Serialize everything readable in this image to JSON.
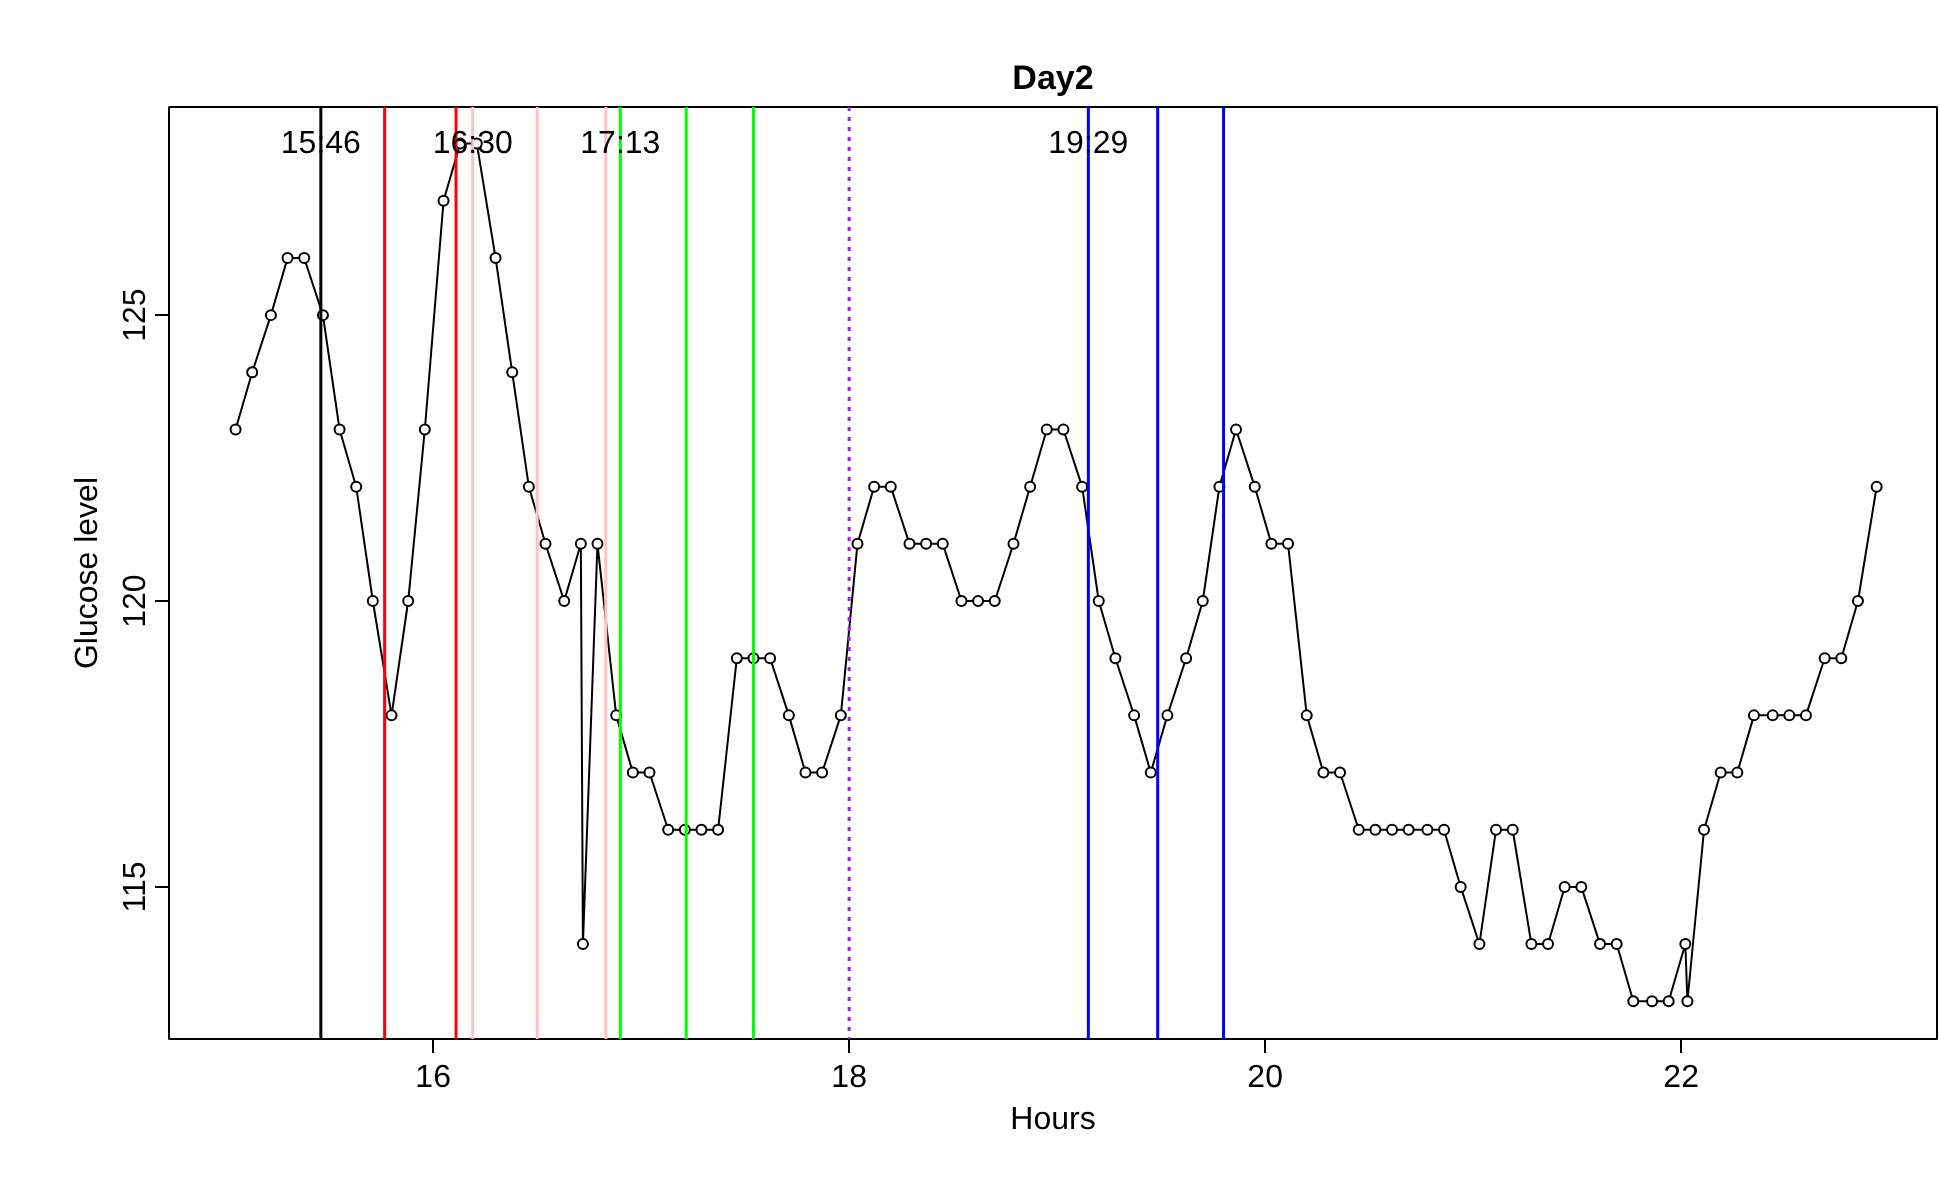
{
  "chart_data": {
    "type": "line",
    "title": "Day2",
    "xlabel": "Hours",
    "ylabel": "Glucose level",
    "xlim": [
      14.73,
      23.23
    ],
    "ylim": [
      112.34,
      128.64
    ],
    "xticks": [
      16,
      18,
      20,
      22
    ],
    "yticks": [
      115,
      120,
      125
    ],
    "grid": false,
    "annotations": [
      {
        "text": "15:46",
        "x": 15.46,
        "y": 128
      },
      {
        "text": "16:30",
        "x": 16.19,
        "y": 128
      },
      {
        "text": "17:13",
        "x": 16.9,
        "y": 128
      },
      {
        "text": "19:29",
        "x": 19.15,
        "y": 128
      }
    ],
    "marker": "circle",
    "line_style": "solid",
    "series": [
      {
        "color": "#000000",
        "x": [
          15.05,
          15.13,
          15.22,
          15.3,
          15.38,
          15.47,
          15.55,
          15.63,
          15.71,
          15.8,
          15.88,
          15.96,
          16.05,
          16.13,
          16.21,
          16.3,
          16.38,
          16.46,
          16.54,
          16.63,
          16.71,
          16.72,
          16.79,
          16.88,
          16.96,
          17.04,
          17.13,
          17.21,
          17.29,
          17.37,
          17.46,
          17.54,
          17.62,
          17.71,
          17.79,
          17.87,
          17.96,
          18.04,
          18.12,
          18.2,
          18.29,
          18.37,
          18.45,
          18.54,
          18.62,
          18.7,
          18.79,
          18.87,
          18.95,
          19.03,
          19.12,
          19.2,
          19.28,
          19.37,
          19.45,
          19.53,
          19.62,
          19.7,
          19.78,
          19.86,
          19.95,
          20.03,
          20.11,
          20.2,
          20.28,
          20.36,
          20.45,
          20.53,
          20.61,
          20.69,
          20.78,
          20.86,
          20.94,
          21.03,
          21.11,
          21.19,
          21.28,
          21.36,
          21.44,
          21.52,
          21.61,
          21.69,
          21.77,
          21.86,
          21.94,
          22.02,
          22.03,
          22.11,
          22.19,
          22.27,
          22.35,
          22.44,
          22.52,
          22.6,
          22.69,
          22.77,
          22.85,
          22.94
        ],
        "values": [
          123,
          124,
          125,
          126,
          126,
          125,
          123,
          122,
          120,
          118,
          120,
          123,
          127,
          128,
          128,
          126,
          124,
          122,
          121,
          120,
          121,
          114,
          121,
          118,
          117,
          117,
          116,
          116,
          116,
          116,
          119,
          119,
          119,
          118,
          117,
          117,
          118,
          121,
          122,
          122,
          121,
          121,
          121,
          120,
          120,
          120,
          121,
          122,
          123,
          123,
          122,
          120,
          119,
          118,
          117,
          118,
          119,
          120,
          122,
          123,
          122,
          121,
          121,
          118,
          117,
          117,
          116,
          116,
          116,
          116,
          116,
          116,
          115,
          114,
          116,
          116,
          114,
          114,
          115,
          115,
          114,
          114,
          113,
          113,
          113,
          114,
          113,
          116,
          117,
          117,
          118,
          118,
          118,
          118,
          119,
          119,
          120,
          122
        ]
      }
    ],
    "ref_lines": [
      {
        "axis": "x",
        "value": 15.46,
        "color": "#000000"
      },
      {
        "axis": "x",
        "value": 15.7667,
        "color": "#ff0000"
      },
      {
        "axis": "x",
        "value": 16.11,
        "color": "#ff0000"
      },
      {
        "axis": "x",
        "value": 16.19,
        "color": "#ffc0cb"
      },
      {
        "axis": "x",
        "value": 16.5,
        "color": "#ffc0cb"
      },
      {
        "axis": "x",
        "value": 16.83,
        "color": "#ffc0cb"
      },
      {
        "axis": "x",
        "value": 16.9,
        "color": "#00ff00"
      },
      {
        "axis": "x",
        "value": 17.2167,
        "color": "#00ff00"
      },
      {
        "axis": "x",
        "value": 17.54,
        "color": "#00ff00"
      },
      {
        "axis": "x",
        "value": 18.0,
        "color": "#a020f0",
        "line_style": "dotted"
      },
      {
        "axis": "x",
        "value": 19.15,
        "color": "#0000ff"
      },
      {
        "axis": "x",
        "value": 19.4833,
        "color": "#0000ff"
      },
      {
        "axis": "x",
        "value": 19.8,
        "color": "#0000ff"
      }
    ]
  }
}
